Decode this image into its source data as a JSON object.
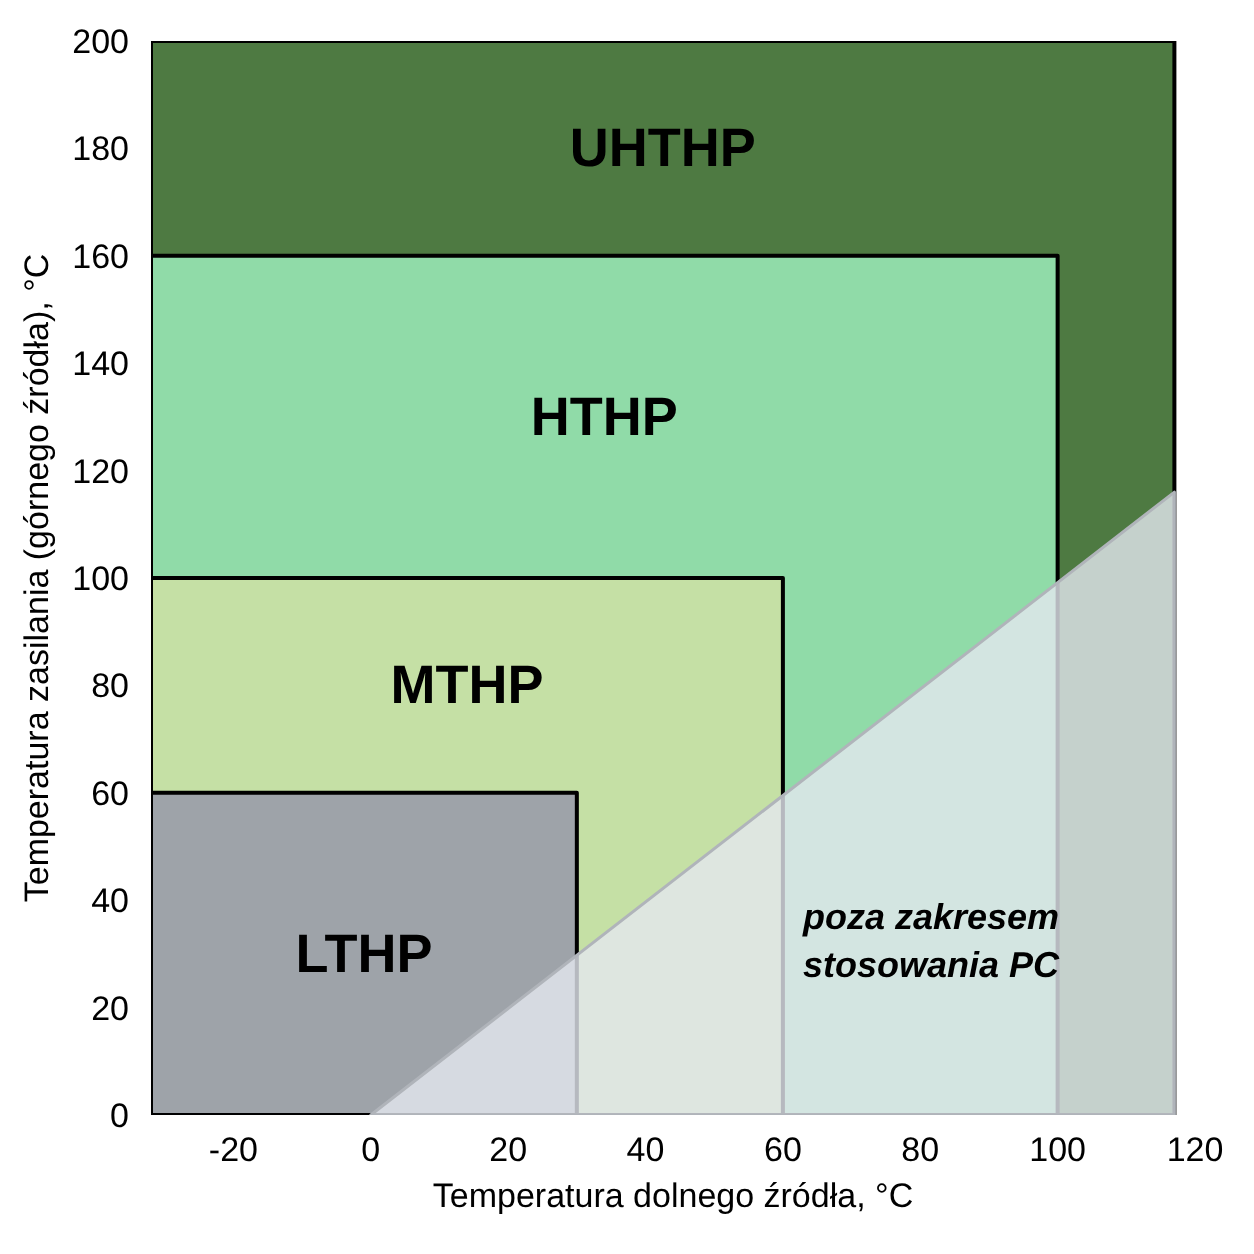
{
  "chart_data": {
    "type": "area",
    "xlabel": "Temperatura dolnego źródła, °C",
    "ylabel": "Temperatura zasilania (górnego źródła), °C",
    "xlim": [
      -32,
      120
    ],
    "xticks": [
      -20,
      0,
      20,
      40,
      60,
      80,
      100,
      120
    ],
    "ylim": [
      0,
      200
    ],
    "yticks": [
      0,
      20,
      40,
      60,
      80,
      100,
      120,
      140,
      160,
      180,
      200
    ],
    "grid": false,
    "series": [
      {
        "name": "UHTHP",
        "color": "#4e7a42",
        "x": [
          -32,
          117
        ],
        "values": [
          200,
          200
        ]
      },
      {
        "name": "HTHP",
        "color": "#90dba8",
        "x": [
          -32,
          100
        ],
        "values": [
          160,
          160
        ]
      },
      {
        "name": "MTHP",
        "color": "#c5e0a5",
        "x": [
          -32,
          60
        ],
        "values": [
          100,
          100
        ]
      },
      {
        "name": "LTHP",
        "color": "#9ea3a9",
        "x": [
          -32,
          30
        ],
        "values": [
          60,
          60
        ]
      },
      {
        "color": "#e4e7ef",
        "x": [
          0,
          117
        ],
        "values": [
          0,
          116
        ]
      }
    ],
    "annotations": [
      "poza zakresem\nstosowania PC"
    ]
  }
}
